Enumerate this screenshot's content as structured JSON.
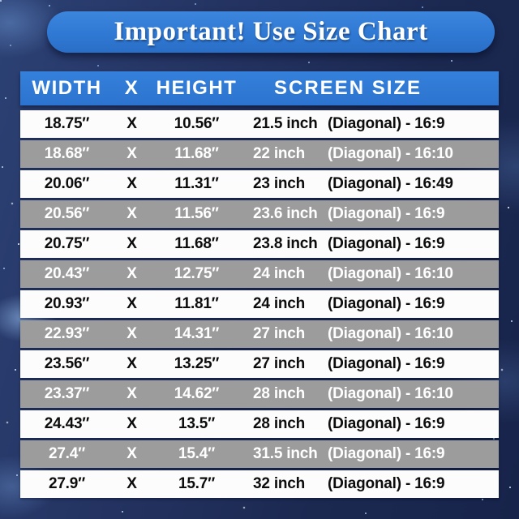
{
  "title": "Important! Use Size Chart",
  "table": {
    "headers": {
      "width": "WIDTH",
      "x": "X",
      "height": "HEIGHT",
      "screen_size": "SCREEN SIZE"
    },
    "rows": [
      {
        "width": "18.75″",
        "x": "X",
        "height": "10.56″",
        "inch": "21.5 inch",
        "diagonal": "(Diagonal) - 16:9",
        "shade": "white"
      },
      {
        "width": "18.68″",
        "x": "X",
        "height": "11.68″",
        "inch": "22 inch",
        "diagonal": "(Diagonal) - 16:10",
        "shade": "gray"
      },
      {
        "width": "20.06″",
        "x": "X",
        "height": "11.31″",
        "inch": "23 inch",
        "diagonal": "(Diagonal) - 16:49",
        "shade": "white"
      },
      {
        "width": "20.56″",
        "x": "X",
        "height": "11.56″",
        "inch": "23.6 inch",
        "diagonal": "(Diagonal) - 16:9",
        "shade": "gray"
      },
      {
        "width": "20.75″",
        "x": "X",
        "height": "11.68″",
        "inch": "23.8 inch",
        "diagonal": "(Diagonal) - 16:9",
        "shade": "white"
      },
      {
        "width": "20.43″",
        "x": "X",
        "height": "12.75″",
        "inch": "24 inch",
        "diagonal": "(Diagonal) - 16:10",
        "shade": "gray"
      },
      {
        "width": "20.93″",
        "x": "X",
        "height": "11.81″",
        "inch": "24 inch",
        "diagonal": "(Diagonal) - 16:9",
        "shade": "white"
      },
      {
        "width": "22.93″",
        "x": "X",
        "height": "14.31″",
        "inch": "27 inch",
        "diagonal": "(Diagonal) - 16:10",
        "shade": "gray"
      },
      {
        "width": "23.56″",
        "x": "X",
        "height": "13.25″",
        "inch": "27 inch",
        "diagonal": "(Diagonal) - 16:9",
        "shade": "white"
      },
      {
        "width": "23.37″",
        "x": "X",
        "height": "14.62″",
        "inch": "28 inch",
        "diagonal": "(Diagonal) - 16:10",
        "shade": "gray"
      },
      {
        "width": "24.43″",
        "x": "X",
        "height": "13.5″",
        "inch": "28 inch",
        "diagonal": "(Diagonal) - 16:9",
        "shade": "white"
      },
      {
        "width": "27.4″",
        "x": "X",
        "height": "15.4″",
        "inch": "31.5 inch",
        "diagonal": "(Diagonal) - 16:9",
        "shade": "gray"
      },
      {
        "width": "27.9″",
        "x": "X",
        "height": "15.7″",
        "inch": "32 inch",
        "diagonal": "(Diagonal) - 16:9",
        "shade": "white"
      }
    ]
  },
  "colors": {
    "banner_blue": "#2f79d4",
    "header_blue": "#2c74cf",
    "row_white": "#fcfcfc",
    "row_gray": "#9c9c9c",
    "background_navy": "#1b2951",
    "text_dark": "#0d0d0d",
    "text_light": "#ffffff"
  },
  "chart_data": {
    "type": "table",
    "title": "Important! Use Size Chart",
    "columns": [
      "WIDTH",
      "X",
      "HEIGHT",
      "SCREEN SIZE"
    ],
    "rows": [
      [
        "18.75″",
        "X",
        "10.56″",
        "21.5 inch (Diagonal) - 16:9"
      ],
      [
        "18.68″",
        "X",
        "11.68″",
        "22 inch (Diagonal) - 16:10"
      ],
      [
        "20.06″",
        "X",
        "11.31″",
        "23 inch (Diagonal) - 16:49"
      ],
      [
        "20.56″",
        "X",
        "11.56″",
        "23.6 inch (Diagonal) - 16:9"
      ],
      [
        "20.75″",
        "X",
        "11.68″",
        "23.8 inch (Diagonal) - 16:9"
      ],
      [
        "20.43″",
        "X",
        "12.75″",
        "24 inch (Diagonal) - 16:10"
      ],
      [
        "20.93″",
        "X",
        "11.81″",
        "24 inch (Diagonal) - 16:9"
      ],
      [
        "22.93″",
        "X",
        "14.31″",
        "27 inch (Diagonal) - 16:10"
      ],
      [
        "23.56″",
        "X",
        "13.25″",
        "27 inch (Diagonal) - 16:9"
      ],
      [
        "23.37″",
        "X",
        "14.62″",
        "28 inch (Diagonal) - 16:10"
      ],
      [
        "24.43″",
        "X",
        "13.5″",
        "28 inch (Diagonal) - 16:9"
      ],
      [
        "27.4″",
        "X",
        "15.4″",
        "31.5 inch (Diagonal) - 16:9"
      ],
      [
        "27.9″",
        "X",
        "15.7″",
        "32 inch (Diagonal) - 16:9"
      ]
    ],
    "layout": "alternating white/gray rows, blue header band, dark starry navy background"
  }
}
